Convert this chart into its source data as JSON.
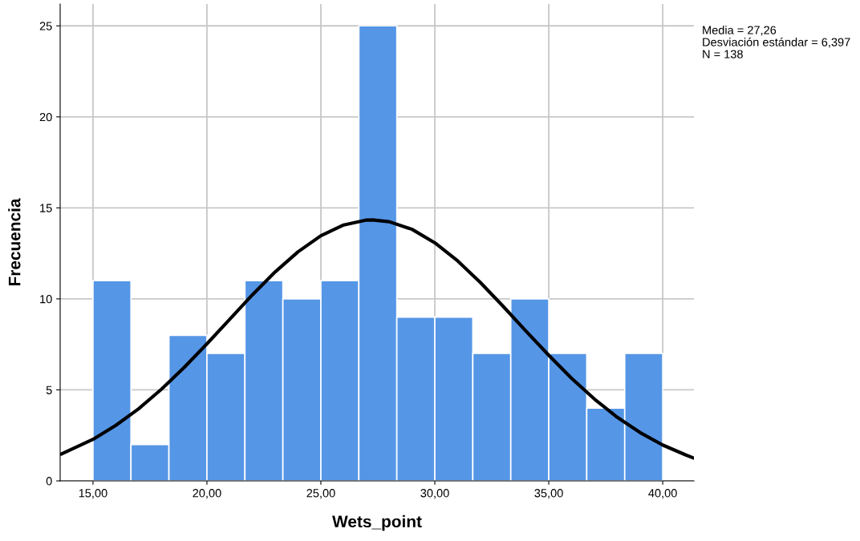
{
  "chart_data": {
    "type": "histogram",
    "xlabel": "Wets_point",
    "ylabel": "Frecuencia",
    "bins": [
      15,
      16.667,
      18.333,
      20,
      21.667,
      23.333,
      25,
      26.667,
      28.333,
      30,
      31.667,
      33.333,
      35,
      36.667,
      38.333,
      40
    ],
    "values": [
      11,
      2,
      8,
      7,
      11,
      10,
      11,
      25,
      9,
      9,
      7,
      10,
      7,
      4,
      7
    ],
    "color": "#5596e6",
    "series": [
      {
        "type": "line",
        "color": "#000000",
        "x": [
          13.6,
          15,
          16,
          17,
          18,
          19,
          20,
          21,
          22,
          23,
          24,
          25,
          26,
          27,
          27.26,
          28,
          29,
          30,
          31,
          32,
          33,
          34,
          35,
          36,
          37,
          38,
          39,
          40,
          41,
          41.37
        ],
        "values": [
          1.47,
          2.28,
          3.05,
          3.96,
          5.03,
          6.23,
          7.53,
          8.88,
          10.23,
          11.49,
          12.59,
          13.47,
          14.06,
          14.33,
          14.34,
          14.24,
          13.82,
          13.08,
          12.09,
          10.9,
          9.59,
          8.23,
          6.9,
          5.64,
          4.5,
          3.5,
          2.66,
          1.97,
          1.43,
          1.25
        ]
      }
    ],
    "xlim": [
      13.56,
      41.37
    ],
    "ylim": [
      0,
      26.2
    ],
    "xticks": [
      {
        "value": 15,
        "label": "15,00"
      },
      {
        "value": 20,
        "label": "20,00"
      },
      {
        "value": 25,
        "label": "25,00"
      },
      {
        "value": 30,
        "label": "30,00"
      },
      {
        "value": 35,
        "label": "35,00"
      },
      {
        "value": 40,
        "label": "40,00"
      }
    ],
    "yticks": [
      0,
      5,
      10,
      15,
      20,
      25
    ],
    "grid": true,
    "legend": false,
    "annotations": [
      "Media = 27,26",
      "Desviación estándar = 6,397",
      "N = 138"
    ]
  }
}
